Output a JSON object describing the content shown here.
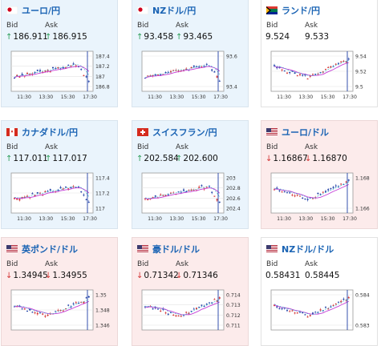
{
  "labels": {
    "bid": "Bid",
    "ask": "Ask"
  },
  "colors": {
    "up_candle": "#d32f2f",
    "down_candle": "#1e3fa6",
    "ma_line": "#c43cd6",
    "ma2_line": "#2ab0c8",
    "link_blue": "#1b64b4",
    "up_arrow": "#2a9d57",
    "down_arrow": "#d23535"
  },
  "cards": [
    {
      "name": "ユーロ/円",
      "flag": "jp",
      "state": "up",
      "bid_dir": "up",
      "ask_dir": "up",
      "bid": "186.911",
      "ask": "186.915",
      "chart": {
        "y_ticks": [
          "187.4",
          "187.2",
          "187",
          "186.8"
        ],
        "x_ticks": [
          "11:30",
          "13:30",
          "15:30",
          "17:30"
        ],
        "pattern": "rise_then_drop"
      }
    },
    {
      "name": "NZドル/円",
      "flag": "jp",
      "state": "up",
      "bid_dir": "up",
      "ask_dir": "up",
      "bid": "93.458",
      "ask": "93.465",
      "chart": {
        "y_ticks": [
          "93.6",
          "93.4"
        ],
        "x_ticks": [
          "11:30",
          "13:30",
          "15:30",
          "17:30"
        ],
        "pattern": "rise_then_drop"
      }
    },
    {
      "name": "ランド/円",
      "flag": "za",
      "state": "flat",
      "bid_dir": "",
      "ask_dir": "",
      "bid": "9.524",
      "ask": "9.533",
      "chart": {
        "y_ticks": [
          "9.54",
          "9.52",
          "9.5"
        ],
        "x_ticks": [
          "11:30",
          "13:30",
          "15:30",
          "17:30"
        ],
        "pattern": "dip_then_rise"
      }
    },
    {
      "name": "カナダドル/円",
      "flag": "ca",
      "state": "up",
      "bid_dir": "up",
      "ask_dir": "up",
      "bid": "117.011",
      "ask": "117.017",
      "chart": {
        "y_ticks": [
          "117.4",
          "117.2",
          "117"
        ],
        "x_ticks": [
          "11:30",
          "13:30",
          "15:30",
          "17:30"
        ],
        "pattern": "rise_then_drop"
      }
    },
    {
      "name": "スイスフラン/円",
      "flag": "ch",
      "state": "up",
      "bid_dir": "up",
      "ask_dir": "up",
      "bid": "202.584",
      "ask": "202.600",
      "chart": {
        "y_ticks": [
          "203",
          "202.8",
          "202.6",
          "202.4"
        ],
        "x_ticks": [
          "11:30",
          "13:30",
          "15:30",
          "17:30"
        ],
        "pattern": "rise_then_drop"
      }
    },
    {
      "name": "ユーロ/ドル",
      "flag": "us",
      "state": "down",
      "bid_dir": "down",
      "ask_dir": "down",
      "bid": "1.16867",
      "ask": "1.16870",
      "chart": {
        "y_ticks": [
          "1.168",
          "1.166"
        ],
        "x_ticks": [
          "11:30",
          "13:30",
          "15:30",
          "17:30"
        ],
        "pattern": "dip_then_rise"
      }
    },
    {
      "name": "英ポンド/ドル",
      "flag": "us",
      "state": "down",
      "bid_dir": "down",
      "ask_dir": "down",
      "bid": "1.34945",
      "ask": "1.34955",
      "chart": {
        "y_ticks": [
          "1.35",
          "1.348",
          "1.346"
        ],
        "x_ticks": [],
        "pattern": "dip_then_rise"
      }
    },
    {
      "name": "豪ドル/ドル",
      "flag": "us",
      "state": "down",
      "bid_dir": "down",
      "ask_dir": "down",
      "bid": "0.71342",
      "ask": "0.71346",
      "chart": {
        "y_ticks": [
          "0.714",
          "0.713",
          "0.712",
          "0.711"
        ],
        "x_ticks": [],
        "pattern": "dip_then_rise"
      }
    },
    {
      "name": "NZドル/ドル",
      "flag": "us",
      "state": "flat",
      "bid_dir": "",
      "ask_dir": "",
      "bid": "0.58431",
      "ask": "0.58445",
      "chart": {
        "y_ticks": [
          "0.584",
          "0.583"
        ],
        "x_ticks": [],
        "pattern": "dip_then_rise"
      }
    }
  ]
}
